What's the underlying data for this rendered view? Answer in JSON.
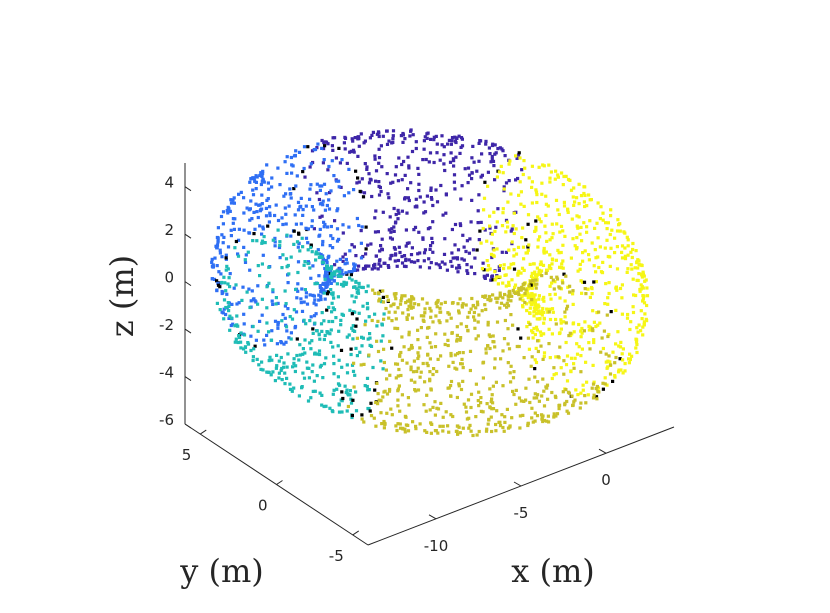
{
  "chart_data": {
    "type": "scatter",
    "subtype": "3d-scatter-torus",
    "title": "",
    "xlabel": "x (m)",
    "ylabel": "y (m)",
    "zlabel": "z (m)",
    "xlim": [
      -14,
      4
    ],
    "ylim": [
      -6,
      6
    ],
    "zlim": [
      -6,
      5
    ],
    "xticks": [
      {
        "value": -10,
        "label": "-10"
      },
      {
        "value": -5,
        "label": "-5"
      },
      {
        "value": 0,
        "label": "0"
      }
    ],
    "yticks": [
      {
        "value": 5,
        "label": "5"
      },
      {
        "value": 0,
        "label": "0"
      },
      {
        "value": -5,
        "label": "-5"
      }
    ],
    "zticks": [
      {
        "value": 4,
        "label": "4"
      },
      {
        "value": 2,
        "label": "2"
      },
      {
        "value": 0,
        "label": "0"
      },
      {
        "value": -2,
        "label": "-2"
      },
      {
        "value": -4,
        "label": "-4"
      },
      {
        "value": -6,
        "label": "-6"
      }
    ],
    "grid": false,
    "legend": "none",
    "torus": {
      "center": [
        -5,
        0,
        0
      ],
      "major_radius": 7,
      "minor_radius": 2.5
    },
    "series": [
      {
        "color": "#3e26a8",
        "theta_range_deg": [
          20,
          85
        ]
      },
      {
        "color": "#2f6ff4",
        "theta_range_deg": [
          85,
          150
        ]
      },
      {
        "color": "#1fbcb6",
        "theta_range_deg": [
          150,
          205
        ]
      },
      {
        "color": "#c9c12a",
        "theta_range_deg": [
          205,
          290
        ]
      },
      {
        "color": "#f6f615",
        "theta_range_deg": [
          290,
          380
        ]
      }
    ],
    "boundary_color": "#000000",
    "boundary_theta_deg": [
      20,
      85,
      150,
      205,
      290
    ]
  }
}
